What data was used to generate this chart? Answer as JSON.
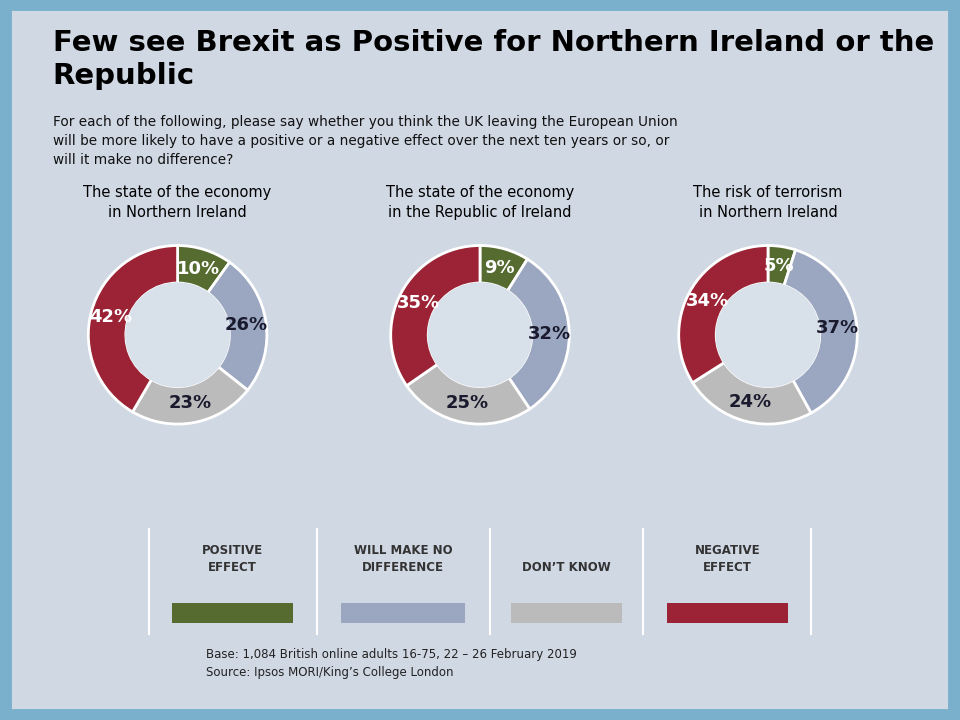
{
  "title": "Few see Brexit as Positive for Northern Ireland or the\nRepublic",
  "subtitle": "For each of the following, please say whether you think the UK leaving the European Union\nwill be more likely to have a positive or a negative effect over the next ten years or so, or\nwill it make no difference?",
  "charts": [
    {
      "title": "The state of the economy\nin Northern Ireland",
      "values": [
        10,
        26,
        23,
        42
      ],
      "labels": [
        "10%",
        "26%",
        "23%",
        "42%"
      ]
    },
    {
      "title": "The state of the economy\nin the Republic of Ireland",
      "values": [
        9,
        32,
        25,
        35
      ],
      "labels": [
        "9%",
        "32%",
        "25%",
        "35%"
      ]
    },
    {
      "title": "The risk of terrorism\nin Northern Ireland",
      "values": [
        5,
        37,
        24,
        34
      ],
      "labels": [
        "5%",
        "37%",
        "24%",
        "34%"
      ]
    }
  ],
  "colors": {
    "positive": "#556B2F",
    "no_difference": "#9BA7C0",
    "dont_know": "#BBBBBB",
    "negative": "#9B2335"
  },
  "legend_labels": [
    "POSITIVE\nEFFECT",
    "WILL MAKE NO\nDIFFERENCE",
    "DON’T KNOW",
    "NEGATIVE\nEFFECT"
  ],
  "background_color": "#D0D8E4",
  "border_color": "#7AB0CC",
  "center_color": "#D8E0EA",
  "base_text": "Base: 1,084 British online adults 16-75, 22 – 26 February 2019\nSource: Ipsos MORI/King’s College London"
}
